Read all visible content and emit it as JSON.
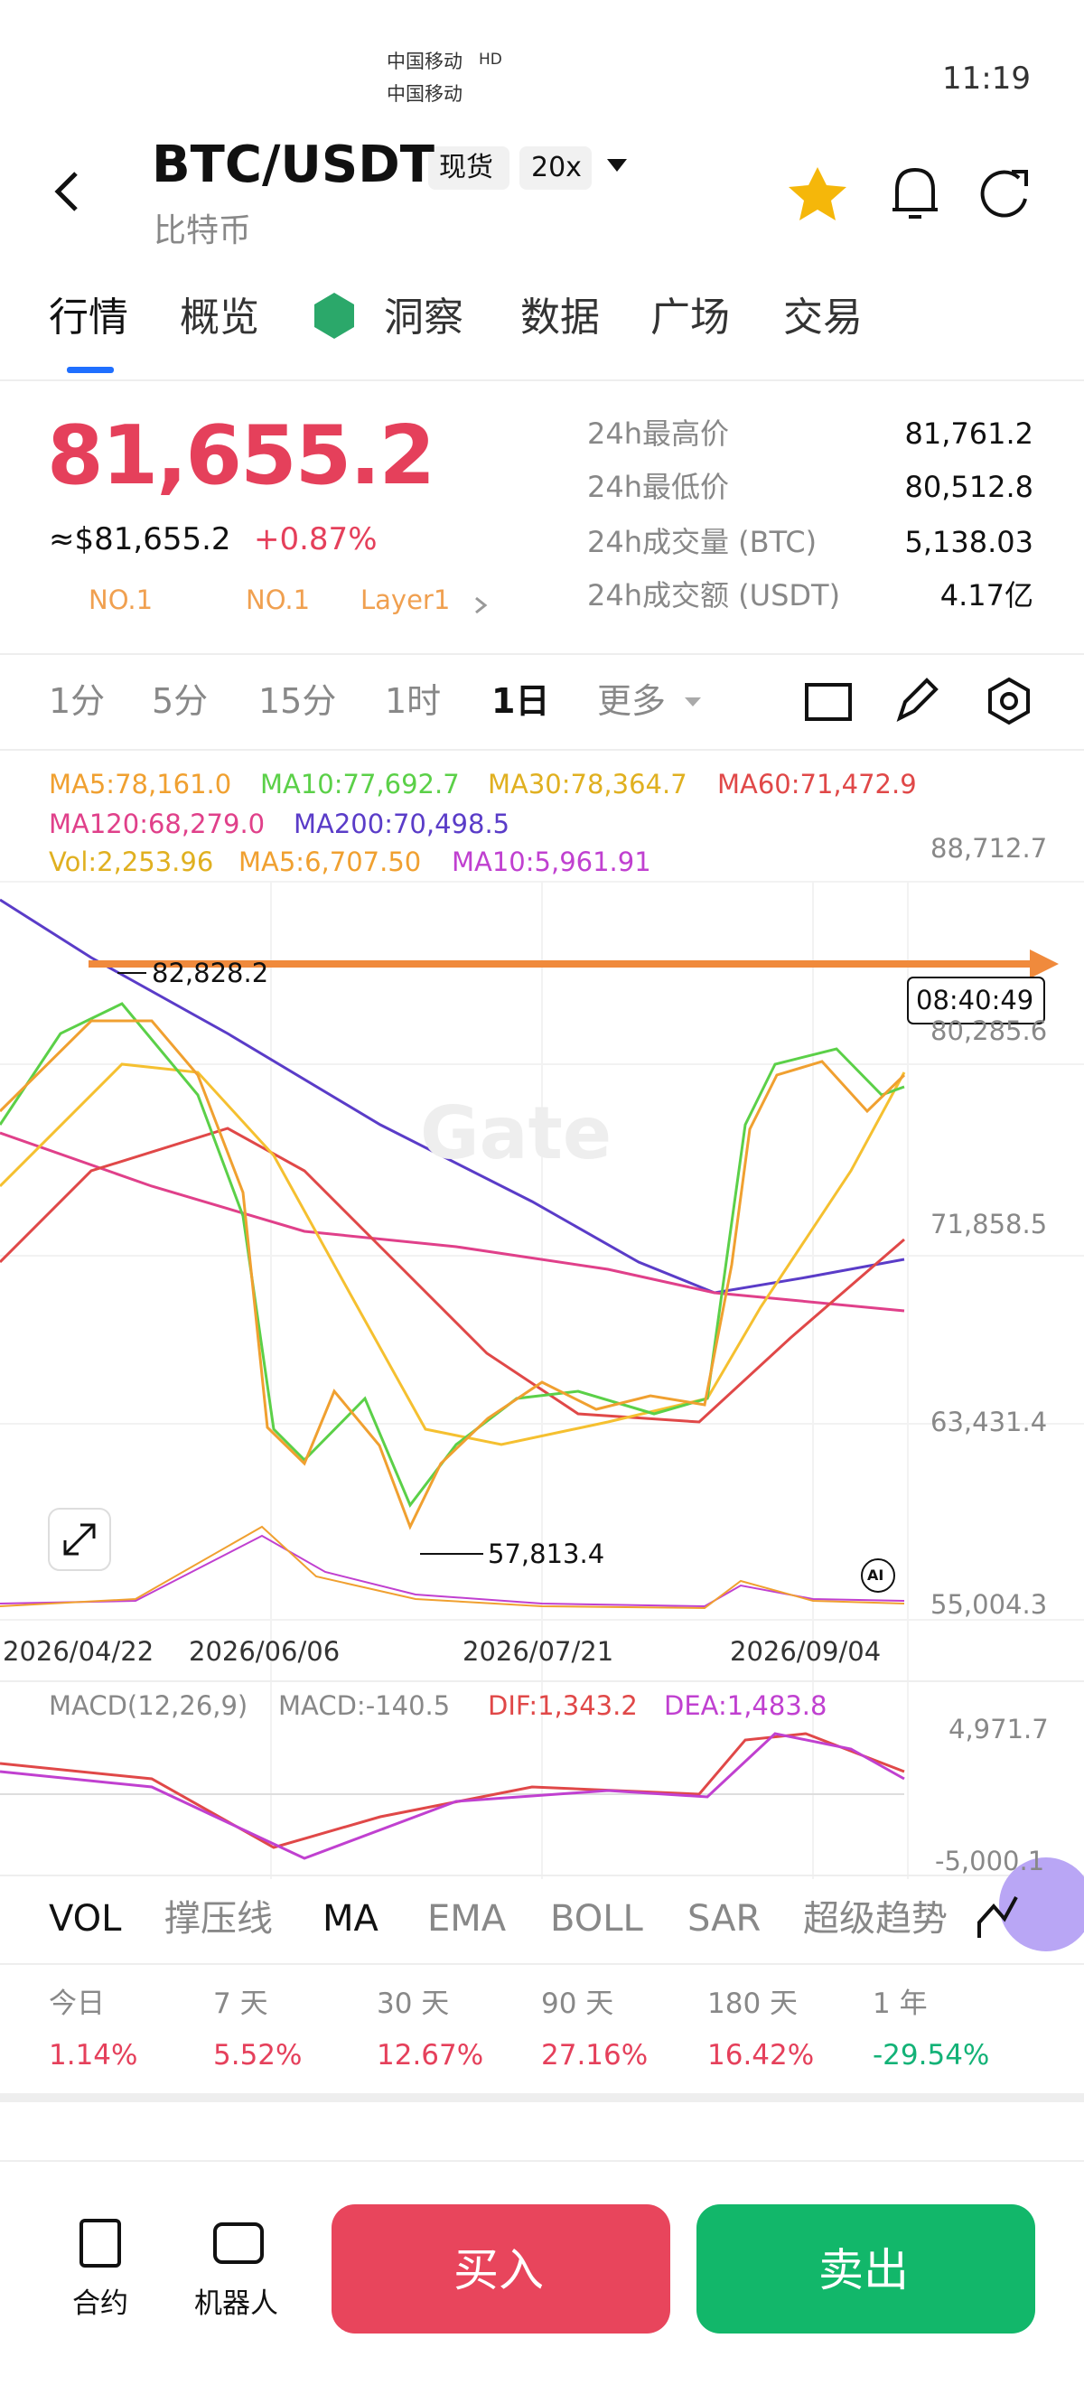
{
  "status_bar": {
    "carrier1": "中国移动",
    "carrier2": "中国移动",
    "hd": "HD",
    "time": "11:19"
  },
  "header": {
    "pair": "BTC/USDT",
    "market": "现货",
    "leverage": "20x",
    "name": "比特币"
  },
  "tabs": [
    "行情",
    "概览",
    "洞察",
    "数据",
    "广场",
    "交易"
  ],
  "ticker": {
    "price": "81,655.2",
    "fiat": "≈$81,655.2",
    "change": "+0.87%",
    "tags": [
      "NO.1",
      "NO.1",
      "Layer1"
    ],
    "stats": [
      {
        "label": "24h最高价",
        "value": "81,761.2"
      },
      {
        "label": "24h最低价",
        "value": "80,512.8"
      },
      {
        "label": "24h成交量 (BTC)",
        "value": "5,138.03"
      },
      {
        "label": "24h成交额 (USDT)",
        "value": "4.17亿"
      }
    ]
  },
  "intervals": [
    "1分",
    "5分",
    "15分",
    "1时",
    "1日",
    "更多"
  ],
  "chart": {
    "ma": [
      "MA5:78,161.0",
      "MA10:77,692.7",
      "MA30:78,364.7",
      "MA60:71,472.9",
      "MA120:68,279.0",
      "MA200:70,498.5"
    ],
    "vol": [
      "Vol:2,253.96",
      "MA5:6,707.50",
      "MA10:5,961.91"
    ],
    "price_axis": [
      "88,712.7",
      "80,285.6",
      "71,858.5",
      "63,431.4",
      "55,004.3"
    ],
    "high_label": "82,828.2",
    "low_label": "57,813.4",
    "countdown": "08:40:49",
    "watermark": "Gate",
    "ai": "AI",
    "dates": [
      "2026/04/22",
      "2026/06/06",
      "2026/07/21",
      "2026/09/04"
    ],
    "macd": [
      "MACD(12,26,9)",
      "MACD:-140.5",
      "DIF:1,343.2",
      "DEA:1,483.8"
    ],
    "macd_axis": [
      "4,971.7",
      "-5,000.1"
    ]
  },
  "indicators": [
    "VOL",
    "撑压线",
    "MA",
    "EMA",
    "BOLL",
    "SAR",
    "超级趋势"
  ],
  "performance": [
    {
      "period": "今日",
      "change": "1.14%"
    },
    {
      "period": "7 天",
      "change": "5.52%"
    },
    {
      "period": "30 天",
      "change": "12.67%"
    },
    {
      "period": "90 天",
      "change": "27.16%"
    },
    {
      "period": "180 天",
      "change": "16.42%"
    },
    {
      "period": "1 年",
      "change": "-29.54%"
    }
  ],
  "bottom_bar": {
    "futures": "合约",
    "bot": "机器人",
    "buy": "买入",
    "sell": "卖出"
  }
}
